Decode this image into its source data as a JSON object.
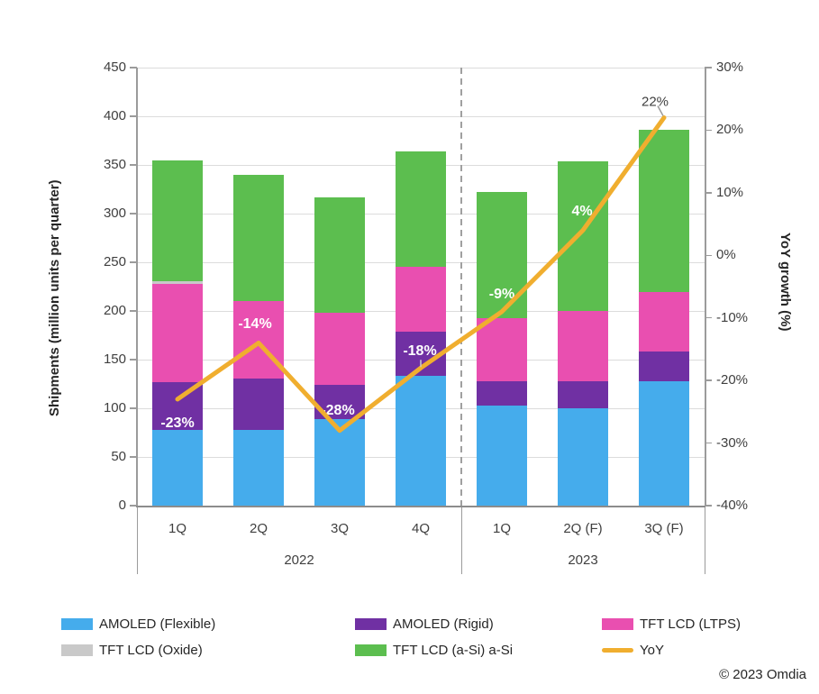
{
  "chart_data": {
    "type": "bar",
    "subtype": "stacked-columns-with-line-overlay",
    "title": "",
    "grid": "horizontal",
    "categories": [
      "1Q",
      "2Q",
      "3Q",
      "4Q",
      "1Q",
      "2Q (F)",
      "3Q (F)"
    ],
    "category_groups": [
      {
        "label": "2022",
        "span": 4
      },
      {
        "label": "2023",
        "span": 3
      }
    ],
    "series": [
      {
        "name": "AMOLED (Flexible)",
        "color": "#45acec",
        "values": [
          78,
          78,
          89,
          133,
          103,
          100,
          128
        ]
      },
      {
        "name": "AMOLED (Rigid)",
        "color": "#7030a3",
        "values": [
          49,
          53,
          35,
          46,
          25,
          28,
          30
        ]
      },
      {
        "name": "TFT LCD (LTPS)",
        "color": "#e94fb0",
        "values": [
          101,
          79,
          74,
          66,
          65,
          72,
          61
        ]
      },
      {
        "name": "TFT LCD (Oxide)",
        "color": "#c9c9c9",
        "values": [
          3,
          0,
          0,
          0,
          0,
          0,
          0
        ]
      },
      {
        "name": "TFT LCD (a-Si) a-Si",
        "color": "#5cbe4f",
        "values": [
          124,
          130,
          119,
          119,
          129,
          154,
          167
        ]
      }
    ],
    "stack_totals": [
      355,
      340,
      317,
      364,
      322,
      354,
      386
    ],
    "line_series": {
      "name": "YoY",
      "color": "#f0ae2f",
      "values_pct": [
        -23,
        -14,
        -28,
        -18,
        -9,
        4,
        22
      ],
      "labels": [
        "-23%",
        "-14%",
        "-28%",
        "-18%",
        "-9%",
        "4%",
        "22%"
      ]
    },
    "left_axis": {
      "title": "Shipments (million units per quarter)",
      "min": 0,
      "max": 450,
      "step": 50,
      "tick_labels": [
        "450",
        "400",
        "350",
        "300",
        "250",
        "200",
        "150",
        "100",
        "50",
        "0"
      ]
    },
    "right_axis": {
      "title": "YoY growth (%)",
      "min": -40,
      "max": 30,
      "step": 10,
      "tick_labels": [
        "30%",
        "20%",
        "10%",
        "0%",
        "-10%",
        "-20%",
        "-30%",
        "-40%"
      ]
    },
    "legend": {
      "position": "bottom",
      "items": [
        {
          "label": "AMOLED (Flexible)",
          "color": "#45acec",
          "marker": "box"
        },
        {
          "label": "AMOLED (Rigid)",
          "color": "#7030a3",
          "marker": "box"
        },
        {
          "label": "TFT LCD (LTPS)",
          "color": "#e94fb0",
          "marker": "box"
        },
        {
          "label": "TFT LCD (Oxide)",
          "color": "#c9c9c9",
          "marker": "box"
        },
        {
          "label": "TFT LCD (a-Si) a-Si",
          "color": "#5cbe4f",
          "marker": "box"
        },
        {
          "label": "YoY",
          "color": "#f0ae2f",
          "marker": "line"
        }
      ]
    },
    "divider": {
      "style": "dashed",
      "color": "#a0a0a0",
      "between_groups": true
    }
  },
  "footer": {
    "copyright": "© 2023 Omdia"
  }
}
